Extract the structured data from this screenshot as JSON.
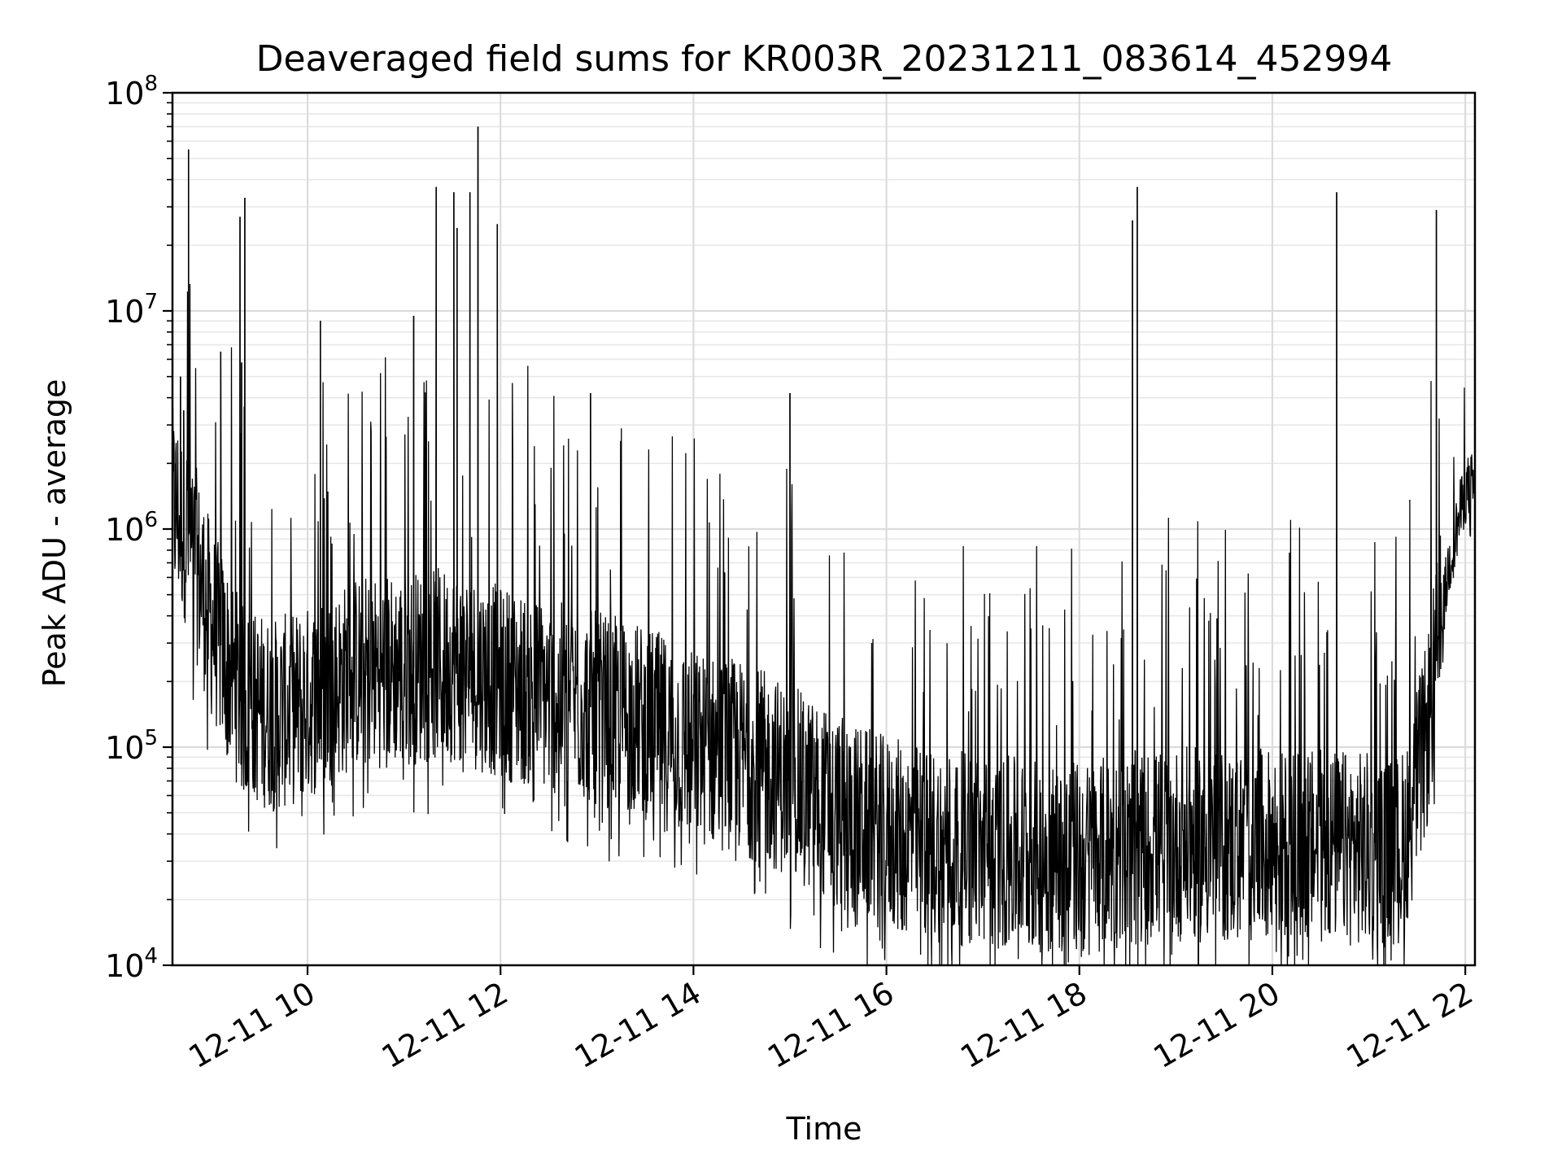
{
  "chart_data": {
    "type": "line",
    "title": "Deaveraged field sums for KR003R_20231211_083614_452994",
    "xlabel": "Time",
    "ylabel": "Peak ADU - average",
    "yscale": "log",
    "ylim": [
      10000,
      100000000
    ],
    "xlim": [
      "2023-12-11 08:36",
      "2023-12-11 22:06"
    ],
    "x_ticks": [
      {
        "value": "2023-12-11 10:00",
        "label": "12-11 10"
      },
      {
        "value": "2023-12-11 12:00",
        "label": "12-11 12"
      },
      {
        "value": "2023-12-11 14:00",
        "label": "12-11 14"
      },
      {
        "value": "2023-12-11 16:00",
        "label": "12-11 16"
      },
      {
        "value": "2023-12-11 18:00",
        "label": "12-11 18"
      },
      {
        "value": "2023-12-11 20:00",
        "label": "12-11 20"
      },
      {
        "value": "2023-12-11 22:00",
        "label": "12-11 22"
      }
    ],
    "y_ticks": [
      {
        "value": 10000,
        "base": "10",
        "exp": "4"
      },
      {
        "value": 100000,
        "base": "10",
        "exp": "5"
      },
      {
        "value": 1000000,
        "base": "10",
        "exp": "6"
      },
      {
        "value": 10000000,
        "base": "10",
        "exp": "7"
      },
      {
        "value": 100000000,
        "base": "10",
        "exp": "8"
      }
    ],
    "grid": true,
    "legend": "none",
    "series_color": "#000000",
    "series": [
      {
        "x": [
          "2023-12-11 08:36",
          "2023-12-11 08:45",
          "2023-12-11 09:00",
          "2023-12-11 09:20",
          "2023-12-11 09:40",
          "2023-12-11 10:00",
          "2023-12-11 10:30",
          "2023-12-11 11:00",
          "2023-12-11 11:30",
          "2023-12-11 12:00",
          "2023-12-11 12:30",
          "2023-12-11 13:00",
          "2023-12-11 13:30",
          "2023-12-11 14:00",
          "2023-12-11 14:30",
          "2023-12-11 15:00",
          "2023-12-11 15:30",
          "2023-12-11 16:00",
          "2023-12-11 16:30",
          "2023-12-11 17:00",
          "2023-12-11 17:30",
          "2023-12-11 18:00",
          "2023-12-11 18:30",
          "2023-12-11 19:00",
          "2023-12-11 19:30",
          "2023-12-11 20:00",
          "2023-12-11 20:30",
          "2023-12-11 21:00",
          "2023-12-11 21:20",
          "2023-12-11 21:35",
          "2023-12-11 21:50",
          "2023-12-11 22:00",
          "2023-12-11 22:06"
        ],
        "baseline": [
          1300000,
          1000000,
          380000,
          160000,
          140000,
          160000,
          220000,
          230000,
          240000,
          200000,
          170000,
          150000,
          130000,
          100000,
          90000,
          70000,
          50000,
          40000,
          36000,
          33000,
          32000,
          31000,
          34000,
          36000,
          35000,
          35000,
          35000,
          34000,
          33000,
          100000,
          700000,
          1500000,
          1600000
        ],
        "spikes": [
          {
            "x": "2023-12-11 08:38",
            "y": 2000000
          },
          {
            "x": "2023-12-11 08:41",
            "y": 5000000
          },
          {
            "x": "2023-12-11 08:43",
            "y": 3500000
          },
          {
            "x": "2023-12-11 08:46",
            "y": 55000000
          },
          {
            "x": "2023-12-11 09:06",
            "y": 6500000
          },
          {
            "x": "2023-12-11 09:18",
            "y": 27000000
          },
          {
            "x": "2023-12-11 09:19",
            "y": 5800000
          },
          {
            "x": "2023-12-11 09:21",
            "y": 33000000
          },
          {
            "x": "2023-12-11 10:08",
            "y": 9000000
          },
          {
            "x": "2023-12-11 11:06",
            "y": 9500000
          },
          {
            "x": "2023-12-11 11:20",
            "y": 37000000
          },
          {
            "x": "2023-12-11 11:31",
            "y": 35000000
          },
          {
            "x": "2023-12-11 11:33",
            "y": 24000000
          },
          {
            "x": "2023-12-11 11:41",
            "y": 35000000
          },
          {
            "x": "2023-12-11 11:46",
            "y": 70000000
          },
          {
            "x": "2023-12-11 11:58",
            "y": 25000000
          },
          {
            "x": "2023-12-11 12:56",
            "y": 4200000
          },
          {
            "x": "2023-12-11 15:00",
            "y": 4200000
          },
          {
            "x": "2023-12-11 18:33",
            "y": 26000000
          },
          {
            "x": "2023-12-11 18:36",
            "y": 37000000
          },
          {
            "x": "2023-12-11 20:40",
            "y": 35000000
          },
          {
            "x": "2023-12-11 21:42",
            "y": 29000000
          }
        ]
      }
    ]
  }
}
